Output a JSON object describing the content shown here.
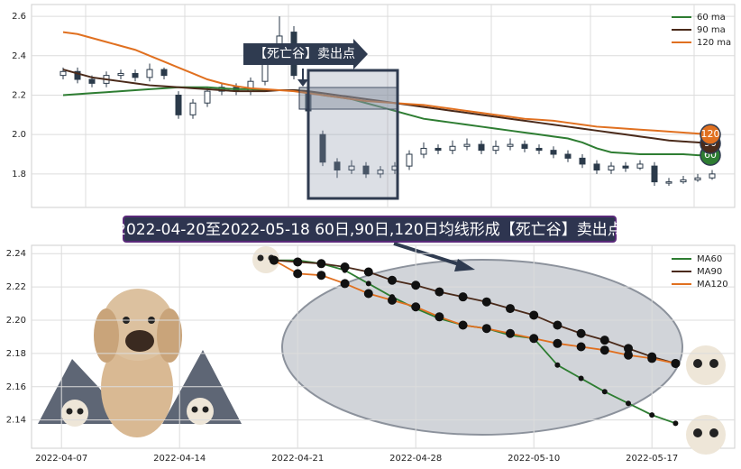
{
  "chart_data": [
    {
      "type": "candlestick",
      "open": [
        2.3,
        2.32,
        2.28,
        2.26,
        2.3,
        2.31,
        2.29,
        2.33,
        2.2,
        2.1,
        2.16,
        2.22,
        2.24,
        2.22,
        2.27,
        2.4,
        2.52,
        2.22,
        2.0,
        1.86,
        1.82,
        1.84,
        1.8,
        1.82,
        1.84,
        1.9,
        1.93,
        1.92,
        1.94,
        1.95,
        1.92,
        1.94,
        1.95,
        1.93,
        1.92,
        1.9,
        1.88,
        1.85,
        1.82,
        1.84,
        1.83,
        1.84,
        1.76,
        1.76,
        1.77,
        1.78
      ],
      "high": [
        2.34,
        2.34,
        2.3,
        2.32,
        2.33,
        2.33,
        2.36,
        2.34,
        2.22,
        2.18,
        2.24,
        2.26,
        2.26,
        2.29,
        2.44,
        2.6,
        2.55,
        2.25,
        2.02,
        1.88,
        1.87,
        1.86,
        1.84,
        1.86,
        1.92,
        1.96,
        1.95,
        1.97,
        1.98,
        1.97,
        1.97,
        1.98,
        1.97,
        1.95,
        1.94,
        1.92,
        1.9,
        1.87,
        1.86,
        1.86,
        1.87,
        1.86,
        1.78,
        1.79,
        1.8,
        1.82
      ],
      "low": [
        2.28,
        2.26,
        2.24,
        2.24,
        2.28,
        2.27,
        2.27,
        2.28,
        2.08,
        2.08,
        2.14,
        2.2,
        2.2,
        2.2,
        2.25,
        2.38,
        2.28,
        2.1,
        1.84,
        1.78,
        1.8,
        1.78,
        1.78,
        1.8,
        1.82,
        1.88,
        1.9,
        1.9,
        1.92,
        1.9,
        1.9,
        1.92,
        1.91,
        1.9,
        1.88,
        1.86,
        1.83,
        1.8,
        1.8,
        1.81,
        1.82,
        1.74,
        1.74,
        1.75,
        1.76,
        1.77
      ],
      "close": [
        2.32,
        2.28,
        2.26,
        2.3,
        2.31,
        2.29,
        2.33,
        2.3,
        2.1,
        2.16,
        2.22,
        2.24,
        2.22,
        2.27,
        2.4,
        2.5,
        2.3,
        2.12,
        1.86,
        1.82,
        1.84,
        1.8,
        1.82,
        1.84,
        1.9,
        1.93,
        1.92,
        1.94,
        1.95,
        1.92,
        1.94,
        1.95,
        1.93,
        1.92,
        1.9,
        1.88,
        1.85,
        1.82,
        1.84,
        1.83,
        1.85,
        1.76,
        1.76,
        1.77,
        1.78,
        1.8
      ],
      "up_color": "#ffffff",
      "down_color": "#2b3a4a",
      "series": [
        {
          "name": "60 ma",
          "color": "#2e7d32",
          "badge": "60",
          "values": [
            2.2,
            2.205,
            2.21,
            2.215,
            2.22,
            2.225,
            2.23,
            2.235,
            2.24,
            2.24,
            2.24,
            2.235,
            2.23,
            2.23,
            2.225,
            2.225,
            2.225,
            2.22,
            2.2,
            2.19,
            2.18,
            2.16,
            2.14,
            2.12,
            2.1,
            2.08,
            2.07,
            2.06,
            2.05,
            2.04,
            2.03,
            2.02,
            2.01,
            2.0,
            1.99,
            1.98,
            1.96,
            1.93,
            1.91,
            1.905,
            1.9,
            1.9,
            1.9,
            1.9,
            1.895,
            1.895
          ]
        },
        {
          "name": "90 ma",
          "color": "#4a2a1a",
          "badge": "90",
          "values": [
            2.33,
            2.31,
            2.29,
            2.28,
            2.27,
            2.26,
            2.25,
            2.245,
            2.24,
            2.235,
            2.23,
            2.225,
            2.22,
            2.22,
            2.22,
            2.225,
            2.225,
            2.22,
            2.21,
            2.2,
            2.19,
            2.18,
            2.17,
            2.16,
            2.15,
            2.14,
            2.13,
            2.12,
            2.11,
            2.1,
            2.09,
            2.08,
            2.07,
            2.06,
            2.05,
            2.04,
            2.03,
            2.02,
            2.01,
            2.0,
            1.99,
            1.98,
            1.97,
            1.965,
            1.96,
            1.955
          ]
        },
        {
          "name": "120 ma",
          "color": "#e07020",
          "badge": "120",
          "values": [
            2.52,
            2.51,
            2.49,
            2.47,
            2.45,
            2.43,
            2.4,
            2.37,
            2.34,
            2.31,
            2.28,
            2.26,
            2.245,
            2.235,
            2.23,
            2.225,
            2.22,
            2.21,
            2.2,
            2.19,
            2.18,
            2.17,
            2.165,
            2.16,
            2.155,
            2.15,
            2.14,
            2.13,
            2.12,
            2.11,
            2.1,
            2.09,
            2.08,
            2.075,
            2.07,
            2.06,
            2.05,
            2.04,
            2.035,
            2.03,
            2.025,
            2.02,
            2.015,
            2.01,
            2.005,
            2.0
          ]
        }
      ],
      "ylim": [
        1.63,
        2.66
      ],
      "yticks": [
        1.8,
        {
          "value": 2,
          "label": "2.0"
        },
        2.2,
        2.4,
        2.6
      ],
      "grid": true,
      "legend": "upper right",
      "annotation": "【死亡谷】卖出点"
    },
    {
      "type": "line",
      "title": "2022-04-20至2022-05-18 60日,90日,120日均线形成【死亡谷】卖出点",
      "categories": [
        null,
        "2022-04-07",
        null,
        null,
        null,
        null,
        "2022-04-14",
        null,
        null,
        null,
        null,
        "2022-04-21",
        null,
        null,
        null,
        null,
        "2022-04-28",
        null,
        null,
        null,
        null,
        "2022-05-10",
        null,
        null,
        null,
        null,
        "2022-05-17",
        null,
        null,
        null
      ],
      "series": [
        {
          "name": "MA60",
          "color": "#2e7d32",
          "values": [
            null,
            null,
            null,
            null,
            null,
            null,
            null,
            null,
            null,
            null,
            2.236,
            2.236,
            2.234,
            2.23,
            2.222,
            2.214,
            2.207,
            2.201,
            2.197,
            2.195,
            2.191,
            2.189,
            2.173,
            2.165,
            2.157,
            2.15,
            2.143,
            2.138,
            null,
            null
          ]
        },
        {
          "name": "MA90",
          "color": "#4a2a1a",
          "values": [
            null,
            null,
            null,
            null,
            null,
            null,
            null,
            null,
            null,
            null,
            2.236,
            2.235,
            2.234,
            2.232,
            2.229,
            2.224,
            2.221,
            2.217,
            2.214,
            2.211,
            2.207,
            2.203,
            2.197,
            2.192,
            2.188,
            2.183,
            2.178,
            2.174,
            null,
            null
          ]
        },
        {
          "name": "MA120",
          "color": "#e07020",
          "values": [
            null,
            null,
            null,
            null,
            null,
            null,
            null,
            null,
            null,
            null,
            2.236,
            2.228,
            2.227,
            2.222,
            2.216,
            2.212,
            2.208,
            2.202,
            2.197,
            2.195,
            2.192,
            2.189,
            2.186,
            2.184,
            2.182,
            2.179,
            2.177,
            2.174,
            null,
            null
          ]
        }
      ],
      "ylim": [
        2.123,
        2.245
      ],
      "yticks": [
        2.14,
        2.16,
        2.18,
        {
          "value": 2.2,
          "label": "2.20"
        },
        2.22,
        2.24
      ],
      "grid": true,
      "legend": "upper right"
    }
  ]
}
